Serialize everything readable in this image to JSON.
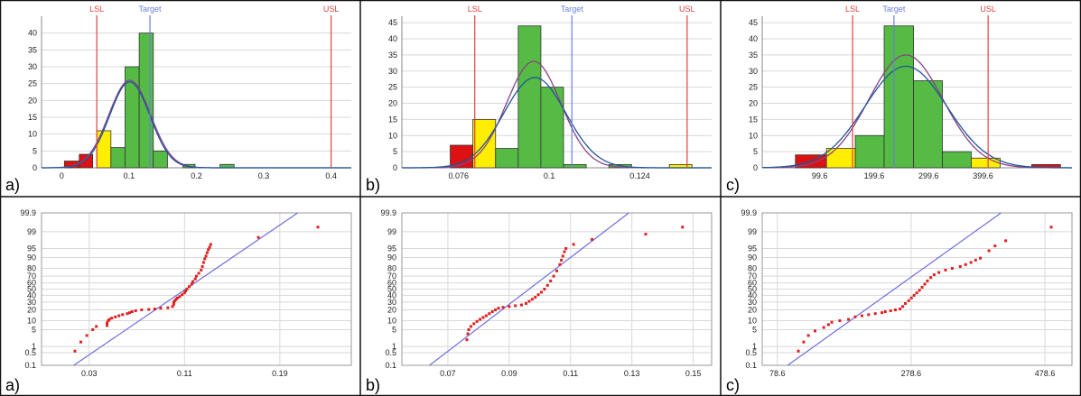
{
  "colors": {
    "fail": "#dd1111",
    "warn": "#ffee00",
    "pass": "#55bb44",
    "spec_line": "#e04040",
    "target_line": "#6a7fe0",
    "fit_blue": "#225599",
    "fit_purple": "#884488",
    "point": "#e02020",
    "probit_line": "#6e6ee0",
    "grid": "#d8d8d8",
    "panel_border": "#111111"
  },
  "chart_data": [
    {
      "type": "bar",
      "panel_label": "a)",
      "spec_labels": [
        "LSL",
        "Target",
        "USL"
      ],
      "spec_x": [
        0.052,
        0.131,
        0.4
      ],
      "xlim": [
        -0.03,
        0.43
      ],
      "ylim": [
        0,
        45
      ],
      "x_ticks": [
        "0",
        "0.1",
        "0.2",
        "0.3",
        "0.4"
      ],
      "x_tick_values": [
        0,
        0.1,
        0.2,
        0.3,
        0.4
      ],
      "y_ticks": [
        "0",
        "5",
        "10",
        "15",
        "20",
        "25",
        "30",
        "35",
        "40"
      ],
      "y_tick_values": [
        0,
        5,
        10,
        15,
        20,
        25,
        30,
        35,
        40
      ],
      "bars": [
        {
          "x0": 0.004,
          "x1": 0.026,
          "value": 2,
          "color": "fail"
        },
        {
          "x0": 0.026,
          "x1": 0.046,
          "value": 4,
          "color": "fail"
        },
        {
          "x0": 0.052,
          "x1": 0.073,
          "value": 11,
          "color": "warn"
        },
        {
          "x0": 0.073,
          "x1": 0.094,
          "value": 6,
          "color": "pass"
        },
        {
          "x0": 0.094,
          "x1": 0.115,
          "value": 30,
          "color": "pass"
        },
        {
          "x0": 0.115,
          "x1": 0.136,
          "value": 40,
          "color": "pass"
        },
        {
          "x0": 0.136,
          "x1": 0.157,
          "value": 5,
          "color": "pass"
        },
        {
          "x0": 0.18,
          "x1": 0.198,
          "value": 1,
          "color": "pass"
        },
        {
          "x0": 0.235,
          "x1": 0.256,
          "value": 1,
          "color": "pass"
        }
      ],
      "fit_curves": [
        {
          "color": "fit_purple",
          "mean": 0.101,
          "sd": 0.031,
          "peak": 26
        },
        {
          "color": "fit_blue",
          "mean": 0.101,
          "sd": 0.03,
          "peak": 25.5
        }
      ]
    },
    {
      "type": "bar",
      "panel_label": "b)",
      "spec_labels": [
        "LSL",
        "Target",
        "USL"
      ],
      "spec_x": [
        0.0803,
        0.106,
        0.1365
      ],
      "xlim": [
        0.061,
        0.143
      ],
      "ylim": [
        0,
        47
      ],
      "x_ticks": [
        "0.076",
        "0.1",
        "0.124"
      ],
      "x_tick_values": [
        0.076,
        0.1,
        0.124
      ],
      "y_ticks": [
        "0",
        "5",
        "10",
        "15",
        "20",
        "25",
        "30",
        "35",
        "40",
        "45"
      ],
      "y_tick_values": [
        0,
        5,
        10,
        15,
        20,
        25,
        30,
        35,
        40,
        45
      ],
      "bars": [
        {
          "x0": 0.0738,
          "x1": 0.0798,
          "value": 7,
          "color": "fail"
        },
        {
          "x0": 0.0798,
          "x1": 0.0858,
          "value": 15,
          "color": "warn"
        },
        {
          "x0": 0.0858,
          "x1": 0.0918,
          "value": 6,
          "color": "pass"
        },
        {
          "x0": 0.0918,
          "x1": 0.0978,
          "value": 44,
          "color": "pass"
        },
        {
          "x0": 0.0978,
          "x1": 0.1038,
          "value": 25,
          "color": "pass"
        },
        {
          "x0": 0.1038,
          "x1": 0.1098,
          "value": 1,
          "color": "pass"
        },
        {
          "x0": 0.1158,
          "x1": 0.1218,
          "value": 1,
          "color": "pass"
        },
        {
          "x0": 0.1318,
          "x1": 0.1378,
          "value": 1,
          "color": "warn"
        }
      ],
      "fit_curves": [
        {
          "color": "fit_purple",
          "mean": 0.0959,
          "sd": 0.0072,
          "peak": 33
        },
        {
          "color": "fit_blue",
          "mean": 0.0962,
          "sd": 0.0082,
          "peak": 28
        }
      ]
    },
    {
      "type": "bar",
      "panel_label": "c)",
      "spec_labels": [
        "LSL",
        "Target",
        "USL"
      ],
      "spec_x": [
        160,
        236,
        409
      ],
      "xlim": [
        -6,
        563
      ],
      "ylim": [
        0,
        47
      ],
      "x_ticks": [
        "99.6",
        "199.6",
        "299.6",
        "399.6"
      ],
      "x_tick_values": [
        99.6,
        199.6,
        299.6,
        399.6
      ],
      "y_ticks": [
        "0",
        "5",
        "10",
        "15",
        "20",
        "25",
        "30",
        "35",
        "40",
        "45"
      ],
      "y_tick_values": [
        0,
        5,
        10,
        15,
        20,
        25,
        30,
        35,
        40,
        45
      ],
      "bars": [
        {
          "x0": 55,
          "x1": 112,
          "value": 4,
          "color": "fail"
        },
        {
          "x0": 112,
          "x1": 165,
          "value": 6,
          "color": "warn"
        },
        {
          "x0": 165,
          "x1": 218,
          "value": 10,
          "color": "pass"
        },
        {
          "x0": 218,
          "x1": 272,
          "value": 44,
          "color": "pass"
        },
        {
          "x0": 272,
          "x1": 325,
          "value": 27,
          "color": "pass"
        },
        {
          "x0": 325,
          "x1": 378,
          "value": 5,
          "color": "pass"
        },
        {
          "x0": 378,
          "x1": 431,
          "value": 3,
          "color": "warn"
        },
        {
          "x0": 489,
          "x1": 542,
          "value": 1,
          "color": "fail"
        }
      ],
      "fit_curves": [
        {
          "color": "fit_purple",
          "mean": 258,
          "sd": 68,
          "peak": 35
        },
        {
          "color": "fit_blue",
          "mean": 258,
          "sd": 75,
          "peak": 31.5
        }
      ]
    },
    {
      "type": "scatter",
      "panel_label": "a)",
      "y_scale": "normal probability",
      "xlim": [
        -0.01,
        0.25
      ],
      "x_ticks": [
        "0.03",
        "0.11",
        "0.19"
      ],
      "x_tick_values": [
        0.03,
        0.11,
        0.19
      ],
      "y_ticks": [
        "0.1",
        "0.5",
        "1",
        "5",
        "10",
        "20",
        "30",
        "40",
        "50",
        "60",
        "70",
        "80",
        "90",
        "95",
        "99",
        "99.9"
      ],
      "y_tick_values": [
        0.1,
        0.5,
        1,
        5,
        10,
        20,
        30,
        40,
        50,
        60,
        70,
        80,
        90,
        95,
        99,
        99.9
      ],
      "reference_line": [
        [
          0.017,
          0.1
        ],
        [
          0.205,
          99.9
        ]
      ],
      "points": [
        [
          0.018,
          0.6
        ],
        [
          0.023,
          1.6
        ],
        [
          0.028,
          3.0
        ],
        [
          0.033,
          5.0
        ],
        [
          0.036,
          6.5
        ],
        [
          0.045,
          7.0
        ],
        [
          0.045,
          8.5
        ],
        [
          0.046,
          10
        ],
        [
          0.047,
          11
        ],
        [
          0.049,
          12
        ],
        [
          0.052,
          13
        ],
        [
          0.055,
          14
        ],
        [
          0.058,
          15
        ],
        [
          0.062,
          16
        ],
        [
          0.064,
          17
        ],
        [
          0.066,
          18
        ],
        [
          0.069,
          19
        ],
        [
          0.074,
          20
        ],
        [
          0.08,
          20.5
        ],
        [
          0.085,
          21
        ],
        [
          0.09,
          22
        ],
        [
          0.096,
          22.5
        ],
        [
          0.1,
          24
        ],
        [
          0.101,
          27
        ],
        [
          0.101,
          30
        ],
        [
          0.102,
          32
        ],
        [
          0.103,
          34
        ],
        [
          0.104,
          36
        ],
        [
          0.106,
          38
        ],
        [
          0.108,
          41
        ],
        [
          0.11,
          44
        ],
        [
          0.111,
          47
        ],
        [
          0.112,
          50
        ],
        [
          0.114,
          54
        ],
        [
          0.116,
          58
        ],
        [
          0.117,
          62
        ],
        [
          0.119,
          66
        ],
        [
          0.12,
          70
        ],
        [
          0.122,
          74
        ],
        [
          0.124,
          78
        ],
        [
          0.125,
          82
        ],
        [
          0.126,
          86
        ],
        [
          0.127,
          89
        ],
        [
          0.128,
          91
        ],
        [
          0.129,
          93
        ],
        [
          0.13,
          94.5
        ],
        [
          0.131,
          95.5
        ],
        [
          0.132,
          96.5
        ],
        [
          0.172,
          98.2
        ],
        [
          0.222,
          99.4
        ]
      ]
    },
    {
      "type": "scatter",
      "panel_label": "b)",
      "y_scale": "normal probability",
      "xlim": [
        0.055,
        0.156
      ],
      "x_ticks": [
        "0.07",
        "0.09",
        "0.11",
        "0.13",
        "0.15"
      ],
      "x_tick_values": [
        0.07,
        0.09,
        0.11,
        0.13,
        0.15
      ],
      "y_ticks": [
        "0.1",
        "0.5",
        "1",
        "5",
        "10",
        "20",
        "30",
        "40",
        "50",
        "60",
        "70",
        "80",
        "90",
        "95",
        "99",
        "99.9"
      ],
      "y_tick_values": [
        0.1,
        0.5,
        1,
        5,
        10,
        20,
        30,
        40,
        50,
        60,
        70,
        80,
        90,
        95,
        99,
        99.9
      ],
      "reference_line": [
        [
          0.064,
          0.1
        ],
        [
          0.129,
          99.9
        ]
      ],
      "points": [
        [
          0.0762,
          2.0
        ],
        [
          0.0765,
          3.5
        ],
        [
          0.0768,
          5.0
        ],
        [
          0.0775,
          6.5
        ],
        [
          0.0785,
          8.0
        ],
        [
          0.0795,
          9.5
        ],
        [
          0.0805,
          11
        ],
        [
          0.0815,
          12.5
        ],
        [
          0.0825,
          14
        ],
        [
          0.0835,
          16
        ],
        [
          0.0845,
          18
        ],
        [
          0.0855,
          20
        ],
        [
          0.0865,
          22
        ],
        [
          0.088,
          23
        ],
        [
          0.09,
          24
        ],
        [
          0.092,
          25
        ],
        [
          0.094,
          26
        ],
        [
          0.0955,
          28
        ],
        [
          0.0965,
          31
        ],
        [
          0.0975,
          34
        ],
        [
          0.0985,
          37
        ],
        [
          0.0995,
          41
        ],
        [
          0.1005,
          45
        ],
        [
          0.1015,
          50
        ],
        [
          0.1025,
          56
        ],
        [
          0.1035,
          63
        ],
        [
          0.1045,
          70
        ],
        [
          0.1055,
          77
        ],
        [
          0.1065,
          84
        ],
        [
          0.107,
          88
        ],
        [
          0.1075,
          91
        ],
        [
          0.108,
          93.5
        ],
        [
          0.1085,
          95
        ],
        [
          0.111,
          96.5
        ],
        [
          0.117,
          97.8
        ],
        [
          0.1345,
          98.7
        ],
        [
          0.1465,
          99.4
        ]
      ]
    },
    {
      "type": "scatter",
      "panel_label": "c)",
      "y_scale": "normal probability",
      "xlim": [
        56,
        519
      ],
      "x_ticks": [
        "78.6",
        "278.6",
        "478.6"
      ],
      "x_tick_values": [
        78.6,
        278.6,
        478.6
      ],
      "y_ticks": [
        "0.1",
        "0.5",
        "1",
        "5",
        "10",
        "20",
        "30",
        "40",
        "50",
        "60",
        "70",
        "80",
        "90",
        "95",
        "99",
        "99.9"
      ],
      "y_tick_values": [
        0.1,
        0.5,
        1,
        5,
        10,
        20,
        30,
        40,
        50,
        60,
        70,
        80,
        90,
        95,
        99,
        99.9
      ],
      "reference_line": [
        [
          94,
          0.1
        ],
        [
          413,
          99.9
        ]
      ],
      "points": [
        [
          110,
          0.6
        ],
        [
          118,
          1.6
        ],
        [
          125,
          3.0
        ],
        [
          135,
          4.5
        ],
        [
          148,
          6.0
        ],
        [
          155,
          7.5
        ],
        [
          160,
          9.0
        ],
        [
          172,
          10
        ],
        [
          185,
          11
        ],
        [
          195,
          13
        ],
        [
          205,
          14
        ],
        [
          215,
          15
        ],
        [
          225,
          16
        ],
        [
          235,
          17
        ],
        [
          240,
          18
        ],
        [
          248,
          19
        ],
        [
          255,
          20
        ],
        [
          262,
          21
        ],
        [
          266,
          24
        ],
        [
          270,
          28
        ],
        [
          275,
          32
        ],
        [
          279,
          36
        ],
        [
          283,
          40
        ],
        [
          287,
          44
        ],
        [
          291,
          48
        ],
        [
          295,
          53
        ],
        [
          299,
          58
        ],
        [
          303,
          63
        ],
        [
          308,
          68
        ],
        [
          313,
          72
        ],
        [
          320,
          75
        ],
        [
          330,
          78
        ],
        [
          340,
          80
        ],
        [
          352,
          82
        ],
        [
          360,
          84
        ],
        [
          368,
          86
        ],
        [
          375,
          88
        ],
        [
          382,
          89.5
        ],
        [
          395,
          94
        ],
        [
          404,
          96
        ],
        [
          420,
          97.5
        ],
        [
          488,
          99.4
        ]
      ]
    }
  ]
}
